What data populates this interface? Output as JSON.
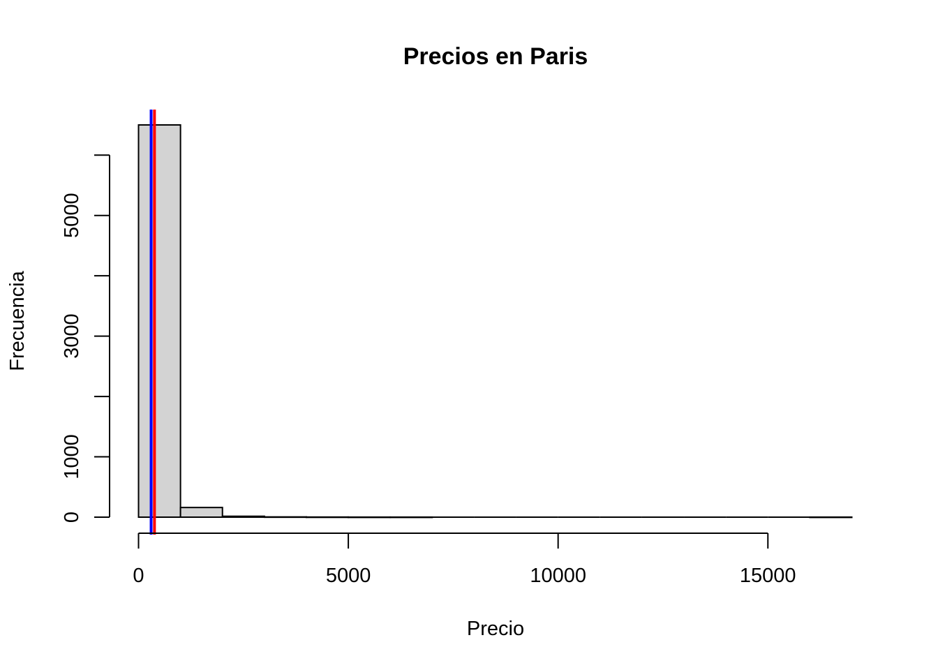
{
  "chart_data": {
    "type": "bar",
    "title": "Precios en Paris",
    "xlabel": "Precio",
    "ylabel": "Frecuencia",
    "xlim": [
      0,
      17000
    ],
    "ylim": [
      0,
      6500
    ],
    "bin_edges": [
      0,
      1000,
      2000,
      3000,
      4000,
      5000,
      6000,
      7000,
      8000,
      9000,
      10000,
      11000,
      12000,
      13000,
      14000,
      15000,
      16000,
      17000
    ],
    "values": [
      6500,
      160,
      15,
      4,
      2,
      1,
      1,
      0,
      0,
      0,
      0,
      0,
      0,
      0,
      0,
      0,
      1
    ],
    "bar_color": "#d3d3d3",
    "x_ticks": [
      0,
      5000,
      10000,
      15000
    ],
    "x_tick_labels": [
      "0",
      "5000",
      "10000",
      "15000"
    ],
    "y_ticks": [
      0,
      1000,
      2000,
      3000,
      4000,
      5000,
      6000
    ],
    "y_tick_labels": [
      "0",
      "",
      "",
      "",
      "",
      "",
      ""
    ],
    "y_tick_labels_shown": [
      "0",
      "1000",
      "3000",
      "5000"
    ],
    "vlines": [
      {
        "x": 300,
        "color": "#0000ff"
      },
      {
        "x": 380,
        "color": "#ff0000"
      }
    ],
    "grid": false
  }
}
